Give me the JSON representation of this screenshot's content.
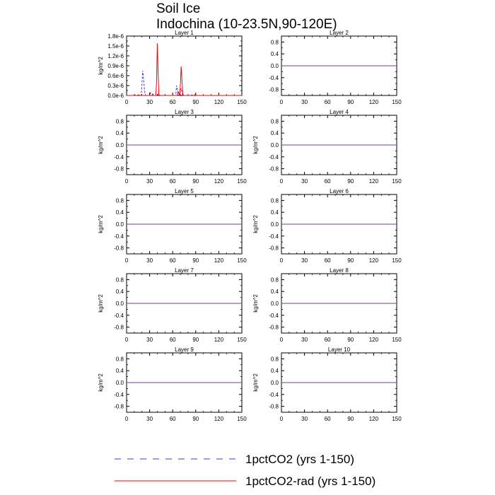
{
  "title": "Soil Ice",
  "subtitle": "Indochina (10-23.5N,90-120E)",
  "legend": {
    "placement": "bottom",
    "entries": [
      {
        "label": "1pctCO2 (yrs 1-150)",
        "color": "#3a3adf",
        "dash": "dashed"
      },
      {
        "label": "1pctCO2-rad (yrs 1-150)",
        "color": "#ff0000",
        "dash": "solid"
      }
    ]
  },
  "colors": {
    "series_a": "#3a3adf",
    "series_b": "#ff0000",
    "zero_line": "#7a3aa8"
  },
  "chart_data": [
    {
      "type": "line",
      "title": "Layer 1",
      "ylabel": "kg/m^2",
      "xlabel": "",
      "xlim": [
        0,
        150
      ],
      "ylim": [
        0,
        1.8e-06
      ],
      "xticks": [
        0,
        30,
        60,
        90,
        120,
        150
      ],
      "yticks": [
        0,
        3e-07,
        6e-07,
        9e-07,
        1.2e-06,
        1.5e-06,
        1.8e-06
      ],
      "ytick_labels": [
        "0.0e-6",
        "0.3e-6",
        "0.6e-6",
        "0.9e-6",
        "1.2e-6",
        "1.5e-6",
        "1.8e-6"
      ],
      "grid": false,
      "series": [
        {
          "x": [
            0,
            10,
            11,
            12,
            13,
            19,
            20,
            21,
            22,
            23,
            24,
            25,
            30,
            31,
            32,
            40,
            41,
            42,
            43,
            44,
            64,
            65,
            66,
            67,
            68,
            69,
            70,
            71,
            72,
            73,
            74,
            84,
            85,
            86,
            150
          ],
          "values": [
            0,
            0,
            2e-08,
            2e-08,
            0,
            0,
            3.5e-07,
            7.5e-07,
            5.2e-07,
            2.5e-07,
            4e-08,
            0,
            0,
            8e-08,
            0,
            0,
            4e-08,
            6e-08,
            2e-08,
            0,
            0,
            3e-07,
            2.1e-07,
            1e-07,
            0,
            0,
            1.2e-07,
            2.2e-07,
            1.2e-07,
            0,
            0,
            0,
            2e-08,
            0,
            0
          ]
        },
        {
          "x": [
            0,
            14,
            15,
            16,
            17,
            33,
            34,
            35,
            38,
            39,
            40,
            41,
            42,
            43,
            66,
            67,
            68,
            69,
            70,
            71,
            72,
            73,
            74,
            88,
            89,
            90,
            150
          ],
          "values": [
            0,
            0,
            2e-08,
            2e-08,
            0,
            0,
            5e-08,
            0,
            0,
            4e-07,
            1.58e-06,
            7e-07,
            4e-08,
            0,
            0,
            1.2e-07,
            6e-08,
            0,
            3e-07,
            8.8e-07,
            5e-07,
            8e-08,
            0,
            0,
            3e-08,
            0,
            0
          ]
        }
      ]
    },
    {
      "type": "line",
      "title": "Layer 2",
      "ylabel": "",
      "xlim": [
        0,
        150
      ],
      "ylim": [
        -1,
        1
      ],
      "xticks": [
        0,
        30,
        60,
        90,
        120,
        150
      ],
      "yticks": [
        -0.8,
        -0.4,
        0.0,
        0.4,
        0.8
      ],
      "ytick_labels": [
        "-0.8",
        "-0.4",
        "0.0",
        "0.4",
        "0.8"
      ],
      "grid": false,
      "series": [
        {
          "x": [
            0,
            150
          ],
          "values": [
            0,
            0
          ]
        },
        {
          "x": [
            0,
            150
          ],
          "values": [
            0,
            0
          ]
        }
      ]
    },
    {
      "type": "line",
      "title": "Layer 3",
      "ylabel": "kg/m^2",
      "xlim": [
        0,
        150
      ],
      "ylim": [
        -1,
        1
      ],
      "xticks": [
        0,
        30,
        60,
        90,
        120,
        150
      ],
      "yticks": [
        -0.8,
        -0.4,
        0.0,
        0.4,
        0.8
      ],
      "ytick_labels": [
        "-0.8",
        "-0.4",
        "0.0",
        "0.4",
        "0.8"
      ],
      "grid": false,
      "series": [
        {
          "x": [
            0,
            150
          ],
          "values": [
            0,
            0
          ]
        },
        {
          "x": [
            0,
            150
          ],
          "values": [
            0,
            0
          ]
        }
      ]
    },
    {
      "type": "line",
      "title": "Layer 4",
      "ylabel": "kg/m^2",
      "xlim": [
        0,
        150
      ],
      "ylim": [
        -1,
        1
      ],
      "xticks": [
        0,
        30,
        60,
        90,
        120,
        150
      ],
      "yticks": [
        -0.8,
        -0.4,
        0.0,
        0.4,
        0.8
      ],
      "ytick_labels": [
        "-0.8",
        "-0.4",
        "0.0",
        "0.4",
        "0.8"
      ],
      "grid": false,
      "series": [
        {
          "x": [
            0,
            150
          ],
          "values": [
            0,
            0
          ]
        },
        {
          "x": [
            0,
            150
          ],
          "values": [
            0,
            0
          ]
        }
      ]
    },
    {
      "type": "line",
      "title": "Layer 5",
      "ylabel": "kg/m^2",
      "xlim": [
        0,
        150
      ],
      "ylim": [
        -1,
        1
      ],
      "xticks": [
        0,
        30,
        60,
        90,
        120,
        150
      ],
      "yticks": [
        -0.8,
        -0.4,
        0.0,
        0.4,
        0.8
      ],
      "ytick_labels": [
        "-0.8",
        "-0.4",
        "0.0",
        "0.4",
        "0.8"
      ],
      "grid": false,
      "series": [
        {
          "x": [
            0,
            150
          ],
          "values": [
            0,
            0
          ]
        },
        {
          "x": [
            0,
            150
          ],
          "values": [
            0,
            0
          ]
        }
      ]
    },
    {
      "type": "line",
      "title": "Layer 6",
      "ylabel": "kg/m^2",
      "xlim": [
        0,
        150
      ],
      "ylim": [
        -1,
        1
      ],
      "xticks": [
        0,
        30,
        60,
        90,
        120,
        150
      ],
      "yticks": [
        -0.8,
        -0.4,
        0.0,
        0.4,
        0.8
      ],
      "ytick_labels": [
        "-0.8",
        "-0.4",
        "0.0",
        "0.4",
        "0.8"
      ],
      "grid": false,
      "series": [
        {
          "x": [
            0,
            150
          ],
          "values": [
            0,
            0
          ]
        },
        {
          "x": [
            0,
            150
          ],
          "values": [
            0,
            0
          ]
        }
      ]
    },
    {
      "type": "line",
      "title": "Layer 7",
      "ylabel": "kg/m^2",
      "xlim": [
        0,
        150
      ],
      "ylim": [
        -1,
        1
      ],
      "xticks": [
        0,
        30,
        60,
        90,
        120,
        150
      ],
      "yticks": [
        -0.8,
        -0.4,
        0.0,
        0.4,
        0.8
      ],
      "ytick_labels": [
        "-0.8",
        "-0.4",
        "0.0",
        "0.4",
        "0.8"
      ],
      "grid": false,
      "series": [
        {
          "x": [
            0,
            150
          ],
          "values": [
            0,
            0
          ]
        },
        {
          "x": [
            0,
            150
          ],
          "values": [
            0,
            0
          ]
        }
      ]
    },
    {
      "type": "line",
      "title": "Layer 8",
      "ylabel": "kg/m^2",
      "xlim": [
        0,
        150
      ],
      "ylim": [
        -1,
        1
      ],
      "xticks": [
        0,
        30,
        60,
        90,
        120,
        150
      ],
      "yticks": [
        -0.8,
        -0.4,
        0.0,
        0.4,
        0.8
      ],
      "ytick_labels": [
        "-0.8",
        "-0.4",
        "0.0",
        "0.4",
        "0.8"
      ],
      "grid": false,
      "series": [
        {
          "x": [
            0,
            150
          ],
          "values": [
            0,
            0
          ]
        },
        {
          "x": [
            0,
            150
          ],
          "values": [
            0,
            0
          ]
        }
      ]
    },
    {
      "type": "line",
      "title": "Layer 9",
      "ylabel": "kg/m^2",
      "xlim": [
        0,
        150
      ],
      "ylim": [
        -1,
        1
      ],
      "xticks": [
        0,
        30,
        60,
        90,
        120,
        150
      ],
      "yticks": [
        -0.8,
        -0.4,
        0.0,
        0.4,
        0.8
      ],
      "ytick_labels": [
        "-0.8",
        "-0.4",
        "0.0",
        "0.4",
        "0.8"
      ],
      "grid": false,
      "series": [
        {
          "x": [
            0,
            150
          ],
          "values": [
            0,
            0
          ]
        },
        {
          "x": [
            0,
            150
          ],
          "values": [
            0,
            0
          ]
        }
      ]
    },
    {
      "type": "line",
      "title": "Layer 10",
      "ylabel": "kg/m^2",
      "xlim": [
        0,
        150
      ],
      "ylim": [
        -1,
        1
      ],
      "xticks": [
        0,
        30,
        60,
        90,
        120,
        150
      ],
      "yticks": [
        -0.8,
        -0.4,
        0.0,
        0.4,
        0.8
      ],
      "ytick_labels": [
        "-0.8",
        "-0.4",
        "0.0",
        "0.4",
        "0.8"
      ],
      "grid": false,
      "series": [
        {
          "x": [
            0,
            150
          ],
          "values": [
            0,
            0
          ]
        },
        {
          "x": [
            0,
            150
          ],
          "values": [
            0,
            0
          ]
        }
      ]
    }
  ]
}
